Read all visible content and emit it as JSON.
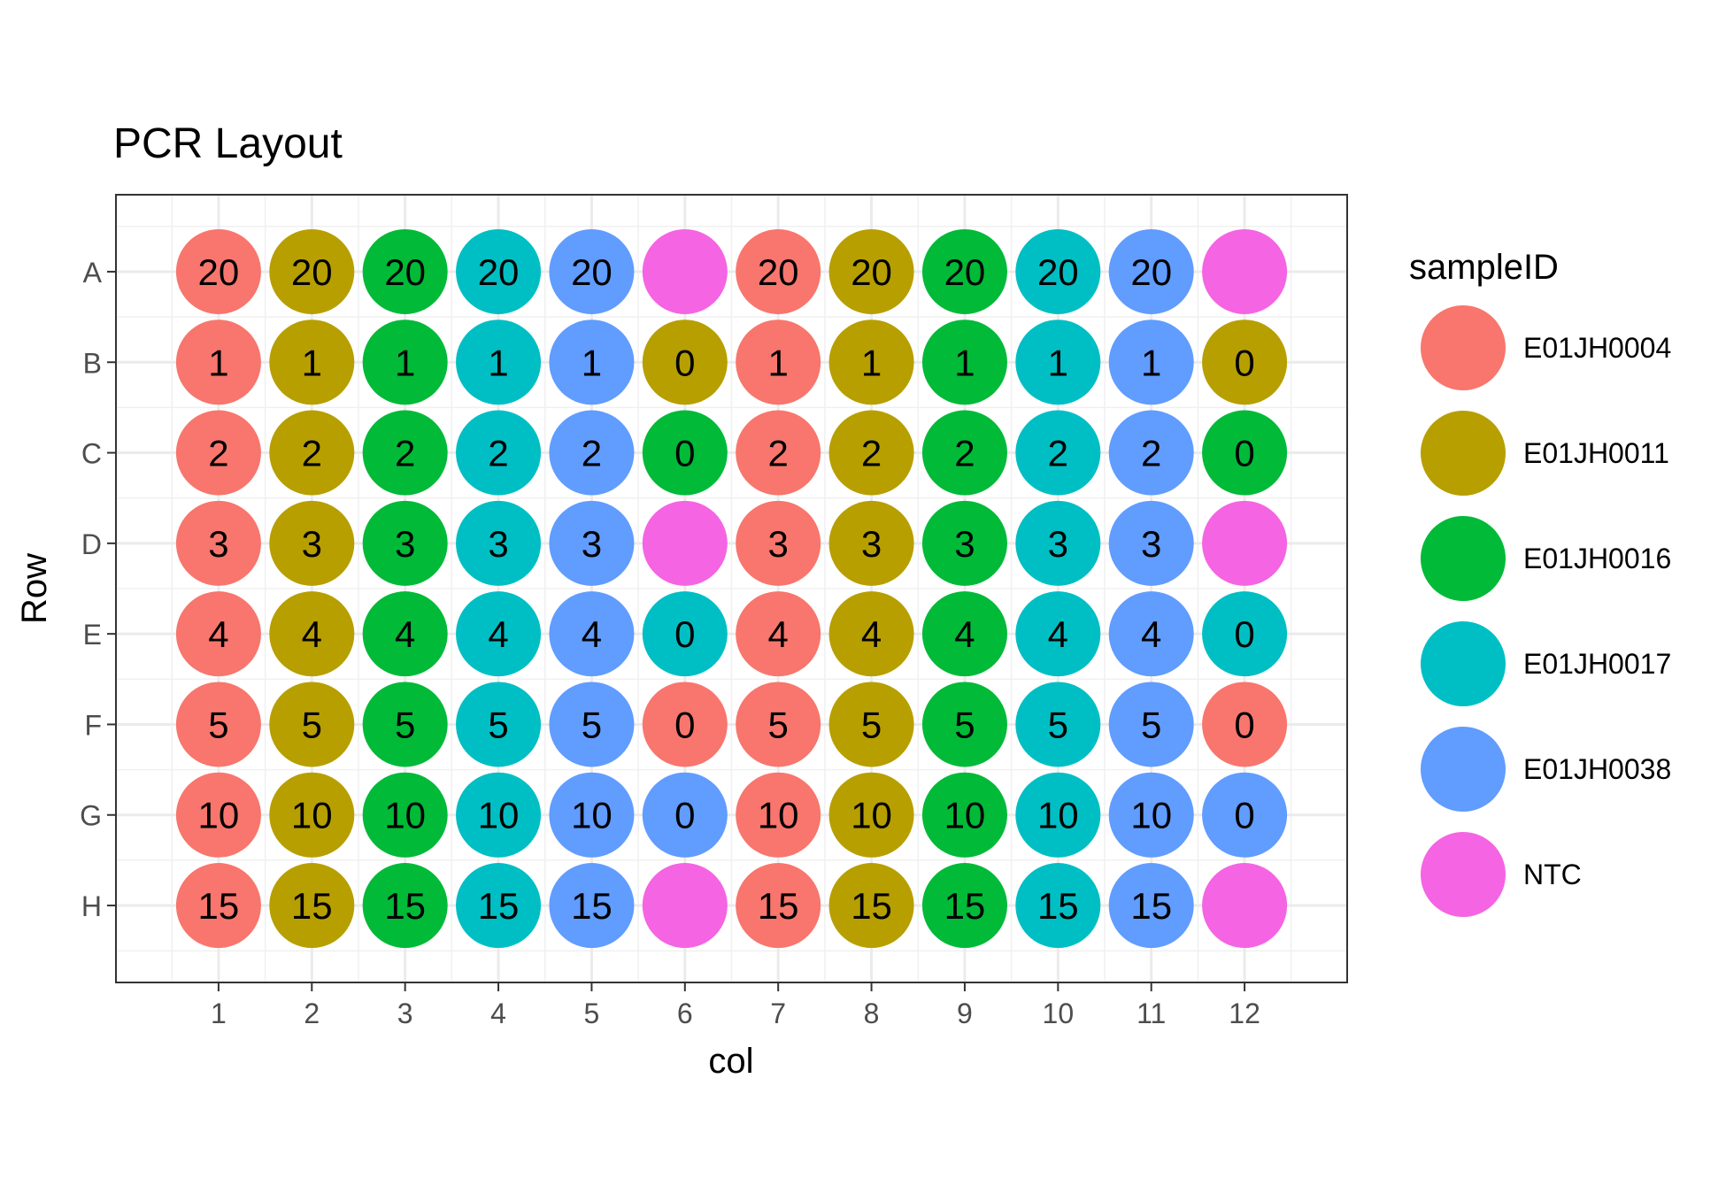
{
  "chart_data": {
    "type": "scatter",
    "title": "PCR Layout",
    "xlabel": "col",
    "ylabel": "Row",
    "x_ticks": [
      "1",
      "2",
      "3",
      "4",
      "5",
      "6",
      "7",
      "8",
      "9",
      "10",
      "11",
      "12"
    ],
    "y_ticks": [
      "A",
      "B",
      "C",
      "D",
      "E",
      "F",
      "G",
      "H"
    ],
    "xlim": [
      -0.1,
      13.1
    ],
    "ylim": [
      0.15,
      8.85
    ],
    "grid": true,
    "legend": {
      "title": "sampleID",
      "position": "right",
      "entries": [
        {
          "name": "E01JH0004",
          "color": "#F8766D"
        },
        {
          "name": "E01JH0011",
          "color": "#B79F00"
        },
        {
          "name": "E01JH0016",
          "color": "#00BA38"
        },
        {
          "name": "E01JH0017",
          "color": "#00BFC4"
        },
        {
          "name": "E01JH0038",
          "color": "#619CFF"
        },
        {
          "name": "NTC",
          "color": "#F564E3"
        }
      ]
    },
    "columns_sample": [
      "E01JH0004",
      "E01JH0011",
      "E01JH0016",
      "E01JH0017",
      "E01JH0038",
      "NTC",
      "E01JH0004",
      "E01JH0011",
      "E01JH0016",
      "E01JH0017",
      "E01JH0038",
      "NTC"
    ],
    "wells": [
      {
        "row": "A",
        "labels": [
          "20",
          "20",
          "20",
          "20",
          "20",
          "",
          "20",
          "20",
          "20",
          "20",
          "20",
          ""
        ]
      },
      {
        "row": "B",
        "labels": [
          "1",
          "1",
          "1",
          "1",
          "1",
          "0",
          "1",
          "1",
          "1",
          "1",
          "1",
          "0"
        ],
        "col6_sample": "E01JH0011",
        "col12_sample": "E01JH0011"
      },
      {
        "row": "C",
        "labels": [
          "2",
          "2",
          "2",
          "2",
          "2",
          "0",
          "2",
          "2",
          "2",
          "2",
          "2",
          "0"
        ],
        "col6_sample": "E01JH0016",
        "col12_sample": "E01JH0016"
      },
      {
        "row": "D",
        "labels": [
          "3",
          "3",
          "3",
          "3",
          "3",
          "",
          "3",
          "3",
          "3",
          "3",
          "3",
          ""
        ]
      },
      {
        "row": "E",
        "labels": [
          "4",
          "4",
          "4",
          "4",
          "4",
          "0",
          "4",
          "4",
          "4",
          "4",
          "4",
          "0"
        ],
        "col6_sample": "E01JH0017",
        "col12_sample": "E01JH0017"
      },
      {
        "row": "F",
        "labels": [
          "5",
          "5",
          "5",
          "5",
          "5",
          "0",
          "5",
          "5",
          "5",
          "5",
          "5",
          "0"
        ],
        "col6_sample": "E01JH0004",
        "col12_sample": "E01JH0004"
      },
      {
        "row": "G",
        "labels": [
          "10",
          "10",
          "10",
          "10",
          "10",
          "0",
          "10",
          "10",
          "10",
          "10",
          "10",
          "0"
        ],
        "col6_sample": "E01JH0038",
        "col12_sample": "E01JH0038"
      },
      {
        "row": "H",
        "labels": [
          "15",
          "15",
          "15",
          "15",
          "15",
          "",
          "15",
          "15",
          "15",
          "15",
          "15",
          ""
        ]
      }
    ]
  }
}
